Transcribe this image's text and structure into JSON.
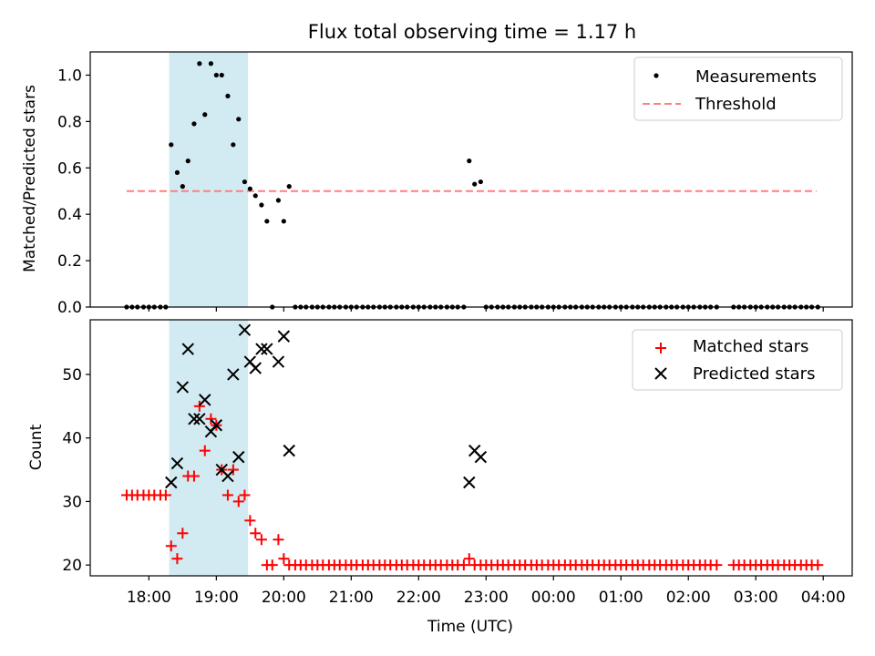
{
  "figure": {
    "title": "Flux total observing time = 1.17 h",
    "xlabel": "Time (UTC)"
  },
  "colors": {
    "span": "#add8e6",
    "threshold": "#ff7f7f",
    "measurement": "#000000",
    "matched": "#ff0000",
    "predicted": "#000000"
  },
  "chart_data": [
    {
      "type": "scatter",
      "ylabel": "Matched/Predicted stars",
      "ylim": [
        0.0,
        1.1
      ],
      "yticks": [
        "0.0",
        "0.2",
        "0.4",
        "0.6",
        "0.8",
        "1.0"
      ],
      "x_tick_labels": [
        "18:00",
        "19:00",
        "20:00",
        "21:00",
        "22:00",
        "23:00",
        "00:00",
        "01:00",
        "02:00",
        "03:00",
        "04:00"
      ],
      "xlim_hours": [
        17.13,
        28.43
      ],
      "legend_position": "upper right",
      "shaded_span_hours": [
        18.3,
        19.47
      ],
      "threshold": {
        "name": "Threshold",
        "y": 0.5,
        "x_range_hours": [
          17.67,
          27.9
        ]
      },
      "series": [
        {
          "name": "Measurements",
          "marker": "dot",
          "points": [
            [
              17.67,
              0
            ],
            [
              17.75,
              0
            ],
            [
              17.83,
              0
            ],
            [
              17.92,
              0
            ],
            [
              18.0,
              0
            ],
            [
              18.08,
              0
            ],
            [
              18.17,
              0
            ],
            [
              18.25,
              0
            ],
            [
              18.33,
              0.7
            ],
            [
              18.42,
              0.58
            ],
            [
              18.5,
              0.52
            ],
            [
              18.58,
              0.63
            ],
            [
              18.67,
              0.79
            ],
            [
              18.75,
              1.05
            ],
            [
              18.83,
              0.83
            ],
            [
              18.92,
              1.05
            ],
            [
              19.0,
              1.0
            ],
            [
              19.08,
              1.0
            ],
            [
              19.17,
              0.91
            ],
            [
              19.25,
              0.7
            ],
            [
              19.33,
              0.81
            ],
            [
              19.42,
              0.54
            ],
            [
              19.5,
              0.51
            ],
            [
              19.58,
              0.48
            ],
            [
              19.67,
              0.44
            ],
            [
              19.75,
              0.37
            ],
            [
              19.83,
              0.0
            ],
            [
              19.92,
              0.46
            ],
            [
              20.0,
              0.37
            ],
            [
              20.08,
              0.52
            ],
            [
              20.17,
              0
            ],
            [
              20.25,
              0
            ],
            [
              20.33,
              0
            ],
            [
              20.42,
              0
            ],
            [
              20.5,
              0
            ],
            [
              20.58,
              0
            ],
            [
              20.67,
              0
            ],
            [
              20.75,
              0
            ],
            [
              20.83,
              0
            ],
            [
              20.92,
              0
            ],
            [
              21.0,
              0
            ],
            [
              21.08,
              0
            ],
            [
              21.17,
              0
            ],
            [
              21.25,
              0
            ],
            [
              21.33,
              0
            ],
            [
              21.42,
              0
            ],
            [
              21.5,
              0
            ],
            [
              21.58,
              0
            ],
            [
              21.67,
              0
            ],
            [
              21.75,
              0
            ],
            [
              21.83,
              0
            ],
            [
              21.92,
              0
            ],
            [
              22.0,
              0
            ],
            [
              22.08,
              0
            ],
            [
              22.17,
              0
            ],
            [
              22.25,
              0
            ],
            [
              22.33,
              0
            ],
            [
              22.42,
              0
            ],
            [
              22.5,
              0
            ],
            [
              22.58,
              0
            ],
            [
              22.67,
              0
            ],
            [
              22.75,
              0.63
            ],
            [
              22.83,
              0.53
            ],
            [
              22.92,
              0.54
            ],
            [
              23.0,
              0
            ],
            [
              23.08,
              0
            ],
            [
              23.17,
              0
            ],
            [
              23.25,
              0
            ],
            [
              23.33,
              0
            ],
            [
              23.42,
              0
            ],
            [
              23.5,
              0
            ],
            [
              23.58,
              0
            ],
            [
              23.67,
              0
            ],
            [
              23.75,
              0
            ],
            [
              23.83,
              0
            ],
            [
              23.92,
              0
            ],
            [
              24.0,
              0
            ],
            [
              24.08,
              0
            ],
            [
              24.17,
              0
            ],
            [
              24.25,
              0
            ],
            [
              24.33,
              0
            ],
            [
              24.42,
              0
            ],
            [
              24.5,
              0
            ],
            [
              24.58,
              0
            ],
            [
              24.67,
              0
            ],
            [
              24.75,
              0
            ],
            [
              24.83,
              0
            ],
            [
              24.92,
              0
            ],
            [
              25.0,
              0
            ],
            [
              25.08,
              0
            ],
            [
              25.17,
              0
            ],
            [
              25.25,
              0
            ],
            [
              25.33,
              0
            ],
            [
              25.42,
              0
            ],
            [
              25.5,
              0
            ],
            [
              25.58,
              0
            ],
            [
              25.67,
              0
            ],
            [
              25.75,
              0
            ],
            [
              25.83,
              0
            ],
            [
              25.92,
              0
            ],
            [
              26.0,
              0
            ],
            [
              26.08,
              0
            ],
            [
              26.17,
              0
            ],
            [
              26.25,
              0
            ],
            [
              26.33,
              0
            ],
            [
              26.42,
              0
            ],
            [
              26.67,
              0
            ],
            [
              26.75,
              0
            ],
            [
              26.83,
              0
            ],
            [
              26.92,
              0
            ],
            [
              27.0,
              0
            ],
            [
              27.08,
              0
            ],
            [
              27.17,
              0
            ],
            [
              27.25,
              0
            ],
            [
              27.33,
              0
            ],
            [
              27.42,
              0
            ],
            [
              27.5,
              0
            ],
            [
              27.58,
              0
            ],
            [
              27.67,
              0
            ],
            [
              27.75,
              0
            ],
            [
              27.83,
              0
            ],
            [
              27.92,
              0
            ]
          ]
        }
      ]
    },
    {
      "type": "scatter",
      "ylabel": "Count",
      "ylim": [
        18.3,
        58.6
      ],
      "yticks": [
        "20",
        "30",
        "40",
        "50"
      ],
      "x_tick_labels": [
        "18:00",
        "19:00",
        "20:00",
        "21:00",
        "22:00",
        "23:00",
        "00:00",
        "01:00",
        "02:00",
        "03:00",
        "04:00"
      ],
      "xlim_hours": [
        17.13,
        28.43
      ],
      "legend_position": "upper right",
      "shaded_span_hours": [
        18.3,
        19.47
      ],
      "series": [
        {
          "name": "Matched stars",
          "marker": "plus",
          "points": [
            [
              17.67,
              31
            ],
            [
              17.75,
              31
            ],
            [
              17.83,
              31
            ],
            [
              17.92,
              31
            ],
            [
              18.0,
              31
            ],
            [
              18.08,
              31
            ],
            [
              18.17,
              31
            ],
            [
              18.25,
              31
            ],
            [
              18.33,
              23
            ],
            [
              18.42,
              21
            ],
            [
              18.5,
              25
            ],
            [
              18.58,
              34
            ],
            [
              18.67,
              34
            ],
            [
              18.75,
              45
            ],
            [
              18.83,
              38
            ],
            [
              18.92,
              43
            ],
            [
              19.0,
              42
            ],
            [
              19.08,
              35
            ],
            [
              19.17,
              31
            ],
            [
              19.25,
              35
            ],
            [
              19.33,
              30
            ],
            [
              19.42,
              31
            ],
            [
              19.5,
              27
            ],
            [
              19.58,
              25
            ],
            [
              19.67,
              24
            ],
            [
              19.75,
              20
            ],
            [
              19.83,
              20
            ],
            [
              19.92,
              24
            ],
            [
              20.0,
              21
            ],
            [
              20.08,
              20
            ],
            [
              20.17,
              20
            ],
            [
              20.25,
              20
            ],
            [
              20.33,
              20
            ],
            [
              20.42,
              20
            ],
            [
              20.5,
              20
            ],
            [
              20.58,
              20
            ],
            [
              20.67,
              20
            ],
            [
              20.75,
              20
            ],
            [
              20.83,
              20
            ],
            [
              20.92,
              20
            ],
            [
              21.0,
              20
            ],
            [
              21.08,
              20
            ],
            [
              21.17,
              20
            ],
            [
              21.25,
              20
            ],
            [
              21.33,
              20
            ],
            [
              21.42,
              20
            ],
            [
              21.5,
              20
            ],
            [
              21.58,
              20
            ],
            [
              21.67,
              20
            ],
            [
              21.75,
              20
            ],
            [
              21.83,
              20
            ],
            [
              21.92,
              20
            ],
            [
              22.0,
              20
            ],
            [
              22.08,
              20
            ],
            [
              22.17,
              20
            ],
            [
              22.25,
              20
            ],
            [
              22.33,
              20
            ],
            [
              22.42,
              20
            ],
            [
              22.5,
              20
            ],
            [
              22.58,
              20
            ],
            [
              22.67,
              20
            ],
            [
              22.75,
              21
            ],
            [
              22.83,
              20
            ],
            [
              22.92,
              20
            ],
            [
              23.0,
              20
            ],
            [
              23.08,
              20
            ],
            [
              23.17,
              20
            ],
            [
              23.25,
              20
            ],
            [
              23.33,
              20
            ],
            [
              23.42,
              20
            ],
            [
              23.5,
              20
            ],
            [
              23.58,
              20
            ],
            [
              23.67,
              20
            ],
            [
              23.75,
              20
            ],
            [
              23.83,
              20
            ],
            [
              23.92,
              20
            ],
            [
              24.0,
              20
            ],
            [
              24.08,
              20
            ],
            [
              24.17,
              20
            ],
            [
              24.25,
              20
            ],
            [
              24.33,
              20
            ],
            [
              24.42,
              20
            ],
            [
              24.5,
              20
            ],
            [
              24.58,
              20
            ],
            [
              24.67,
              20
            ],
            [
              24.75,
              20
            ],
            [
              24.83,
              20
            ],
            [
              24.92,
              20
            ],
            [
              25.0,
              20
            ],
            [
              25.08,
              20
            ],
            [
              25.17,
              20
            ],
            [
              25.25,
              20
            ],
            [
              25.33,
              20
            ],
            [
              25.42,
              20
            ],
            [
              25.5,
              20
            ],
            [
              25.58,
              20
            ],
            [
              25.67,
              20
            ],
            [
              25.75,
              20
            ],
            [
              25.83,
              20
            ],
            [
              25.92,
              20
            ],
            [
              26.0,
              20
            ],
            [
              26.08,
              20
            ],
            [
              26.17,
              20
            ],
            [
              26.25,
              20
            ],
            [
              26.33,
              20
            ],
            [
              26.42,
              20
            ],
            [
              26.67,
              20
            ],
            [
              26.75,
              20
            ],
            [
              26.83,
              20
            ],
            [
              26.92,
              20
            ],
            [
              27.0,
              20
            ],
            [
              27.08,
              20
            ],
            [
              27.17,
              20
            ],
            [
              27.25,
              20
            ],
            [
              27.33,
              20
            ],
            [
              27.42,
              20
            ],
            [
              27.5,
              20
            ],
            [
              27.58,
              20
            ],
            [
              27.67,
              20
            ],
            [
              27.75,
              20
            ],
            [
              27.83,
              20
            ],
            [
              27.92,
              20
            ]
          ]
        },
        {
          "name": "Predicted stars",
          "marker": "x",
          "points": [
            [
              18.33,
              33
            ],
            [
              18.42,
              36
            ],
            [
              18.5,
              48
            ],
            [
              18.58,
              54
            ],
            [
              18.67,
              43
            ],
            [
              18.75,
              43
            ],
            [
              18.83,
              46
            ],
            [
              18.92,
              41
            ],
            [
              19.0,
              42
            ],
            [
              19.08,
              35
            ],
            [
              19.17,
              34
            ],
            [
              19.25,
              50
            ],
            [
              19.33,
              37
            ],
            [
              19.42,
              57
            ],
            [
              19.5,
              52
            ],
            [
              19.58,
              51
            ],
            [
              19.67,
              54
            ],
            [
              19.75,
              54
            ],
            [
              19.92,
              52
            ],
            [
              20.0,
              56
            ],
            [
              20.08,
              38
            ],
            [
              22.75,
              33
            ],
            [
              22.83,
              38
            ],
            [
              22.92,
              37
            ]
          ]
        }
      ]
    }
  ]
}
